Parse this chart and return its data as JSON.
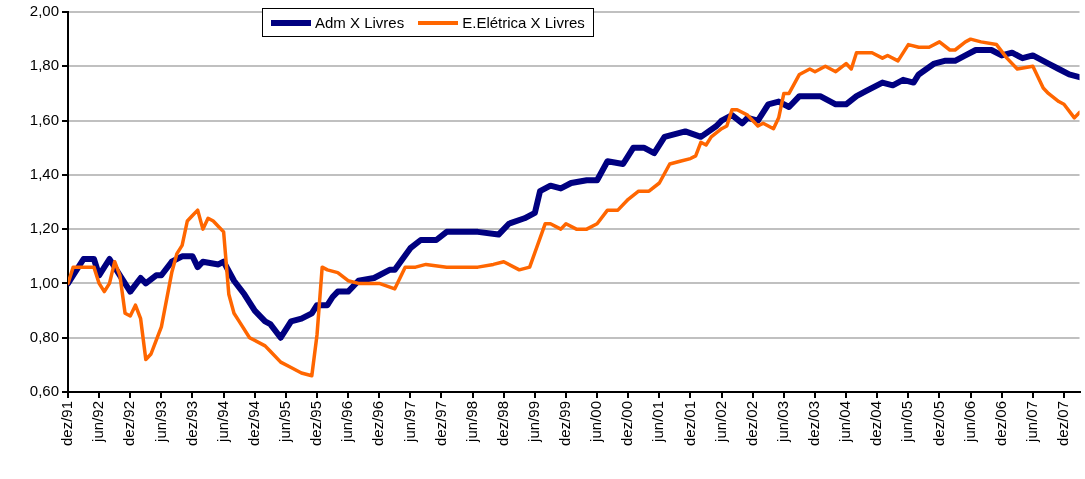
{
  "chart_data": {
    "type": "line",
    "legend": "top",
    "grid": "y",
    "marker": "none",
    "line_style": "solid",
    "xlim": [
      "1991-12",
      "2008-03"
    ],
    "xticks": [
      {
        "value": "1991-12",
        "label": "dez/91"
      },
      {
        "value": "1992-06",
        "label": "jun/92"
      },
      {
        "value": "1992-12",
        "label": "dez/92"
      },
      {
        "value": "1993-06",
        "label": "jun/93"
      },
      {
        "value": "1993-12",
        "label": "dez/93"
      },
      {
        "value": "1994-06",
        "label": "jun/94"
      },
      {
        "value": "1994-12",
        "label": "dez/94"
      },
      {
        "value": "1995-06",
        "label": "jun/95"
      },
      {
        "value": "1995-12",
        "label": "dez/95"
      },
      {
        "value": "1996-06",
        "label": "jun/96"
      },
      {
        "value": "1996-12",
        "label": "dez/96"
      },
      {
        "value": "1997-06",
        "label": "jun/97"
      },
      {
        "value": "1997-12",
        "label": "dez/97"
      },
      {
        "value": "1998-06",
        "label": "jun/98"
      },
      {
        "value": "1998-12",
        "label": "dez/98"
      },
      {
        "value": "1999-06",
        "label": "jun/99"
      },
      {
        "value": "1999-12",
        "label": "dez/99"
      },
      {
        "value": "2000-06",
        "label": "jun/00"
      },
      {
        "value": "2000-12",
        "label": "dez/00"
      },
      {
        "value": "2001-06",
        "label": "jun/01"
      },
      {
        "value": "2001-12",
        "label": "dez/01"
      },
      {
        "value": "2002-06",
        "label": "jun/02"
      },
      {
        "value": "2002-12",
        "label": "dez/02"
      },
      {
        "value": "2003-06",
        "label": "jun/03"
      },
      {
        "value": "2003-12",
        "label": "dez/03"
      },
      {
        "value": "2004-06",
        "label": "jun/04"
      },
      {
        "value": "2004-12",
        "label": "dez/04"
      },
      {
        "value": "2005-06",
        "label": "jun/05"
      },
      {
        "value": "2005-12",
        "label": "dez/05"
      },
      {
        "value": "2006-06",
        "label": "jun/06"
      },
      {
        "value": "2006-12",
        "label": "dez/06"
      },
      {
        "value": "2007-06",
        "label": "jun/07"
      },
      {
        "value": "2007-12",
        "label": "dez/07"
      }
    ],
    "ylim": [
      0.6,
      2.0
    ],
    "yticks": [
      {
        "value": 0.6,
        "label": "0,60"
      },
      {
        "value": 0.8,
        "label": "0,80"
      },
      {
        "value": 1.0,
        "label": "1,00"
      },
      {
        "value": 1.2,
        "label": "1,20"
      },
      {
        "value": 1.4,
        "label": "1,40"
      },
      {
        "value": 1.6,
        "label": "1,60"
      },
      {
        "value": 1.8,
        "label": "1,80"
      },
      {
        "value": 2.0,
        "label": "2,00"
      }
    ],
    "series": [
      {
        "name": "Adm X Livres",
        "color": "#000080",
        "x": [
          "1991-12",
          "1992-03",
          "1992-05",
          "1992-06",
          "1992-08",
          "1992-10",
          "1992-12",
          "1993-02",
          "1993-03",
          "1993-05",
          "1993-06",
          "1993-08",
          "1993-10",
          "1993-12",
          "1994-01",
          "1994-02",
          "1994-05",
          "1994-06",
          "1994-08",
          "1994-10",
          "1994-12",
          "1995-02",
          "1995-03",
          "1995-05",
          "1995-07",
          "1995-09",
          "1995-11",
          "1995-12",
          "1996-02",
          "1996-03",
          "1996-04",
          "1996-06",
          "1996-08",
          "1996-11",
          "1997-02",
          "1997-03",
          "1997-06",
          "1997-08",
          "1997-11",
          "1998-01",
          "1998-03",
          "1998-07",
          "1998-11",
          "1999-01",
          "1999-04",
          "1999-06",
          "1999-07",
          "1999-09",
          "1999-11",
          "2000-01",
          "2000-04",
          "2000-06",
          "2000-08",
          "2000-11",
          "2001-01",
          "2001-03",
          "2001-05",
          "2001-07",
          "2001-11",
          "2002-02",
          "2002-05",
          "2002-06",
          "2002-08",
          "2002-10",
          "2002-11",
          "2003-01",
          "2003-03",
          "2003-05",
          "2003-07",
          "2003-09",
          "2004-01",
          "2004-04",
          "2004-06",
          "2004-08",
          "2004-10",
          "2005-01",
          "2005-03",
          "2005-05",
          "2005-07",
          "2005-08",
          "2005-11",
          "2006-01",
          "2006-03",
          "2006-05",
          "2006-07",
          "2006-10",
          "2006-12",
          "2007-02",
          "2007-04",
          "2007-06",
          "2007-09",
          "2007-11",
          "2008-01",
          "2008-03"
        ],
        "values": [
          1.0,
          1.09,
          1.09,
          1.03,
          1.09,
          1.03,
          0.97,
          1.02,
          1.0,
          1.03,
          1.03,
          1.08,
          1.1,
          1.1,
          1.06,
          1.08,
          1.07,
          1.08,
          1.01,
          0.96,
          0.9,
          0.86,
          0.85,
          0.8,
          0.86,
          0.87,
          0.89,
          0.92,
          0.92,
          0.95,
          0.97,
          0.97,
          1.01,
          1.02,
          1.05,
          1.05,
          1.13,
          1.16,
          1.16,
          1.19,
          1.19,
          1.19,
          1.18,
          1.22,
          1.24,
          1.26,
          1.34,
          1.36,
          1.35,
          1.37,
          1.38,
          1.38,
          1.45,
          1.44,
          1.5,
          1.5,
          1.48,
          1.54,
          1.56,
          1.54,
          1.58,
          1.6,
          1.62,
          1.59,
          1.61,
          1.6,
          1.66,
          1.67,
          1.65,
          1.69,
          1.69,
          1.66,
          1.66,
          1.69,
          1.71,
          1.74,
          1.73,
          1.75,
          1.74,
          1.77,
          1.81,
          1.82,
          1.82,
          1.84,
          1.86,
          1.86,
          1.84,
          1.85,
          1.83,
          1.84,
          1.81,
          1.79,
          1.77,
          1.76
        ]
      },
      {
        "name": "E.Elétrica X Livres",
        "color": "#ff6600",
        "x": [
          "1991-12",
          "1992-01",
          "1992-04",
          "1992-05",
          "1992-06",
          "1992-07",
          "1992-08",
          "1992-09",
          "1992-10",
          "1992-11",
          "1992-12",
          "1993-01",
          "1993-02",
          "1993-03",
          "1993-04",
          "1993-05",
          "1993-06",
          "1993-08",
          "1993-09",
          "1993-10",
          "1993-11",
          "1993-12",
          "1994-01",
          "1994-02",
          "1994-03",
          "1994-04",
          "1994-05",
          "1994-06",
          "1994-07",
          "1994-08",
          "1994-09",
          "1994-11",
          "1995-02",
          "1995-03",
          "1995-05",
          "1995-07",
          "1995-09",
          "1995-11",
          "1995-12",
          "1996-01",
          "1996-02",
          "1996-04",
          "1996-06",
          "1996-08",
          "1996-10",
          "1996-12",
          "1997-03",
          "1997-05",
          "1997-07",
          "1997-09",
          "1998-01",
          "1998-04",
          "1998-07",
          "1998-10",
          "1998-12",
          "1999-03",
          "1999-05",
          "1999-08",
          "1999-09",
          "1999-11",
          "1999-12",
          "2000-02",
          "2000-04",
          "2000-06",
          "2000-08",
          "2000-10",
          "2000-12",
          "2001-02",
          "2001-04",
          "2001-06",
          "2001-08",
          "2001-10",
          "2001-12",
          "2002-01",
          "2002-02",
          "2002-03",
          "2002-04",
          "2002-06",
          "2002-07",
          "2002-08",
          "2002-09",
          "2002-11",
          "2003-01",
          "2003-02",
          "2003-04",
          "2003-05",
          "2003-06",
          "2003-07",
          "2003-09",
          "2003-11",
          "2003-12",
          "2004-02",
          "2004-04",
          "2004-06",
          "2004-07",
          "2004-08",
          "2004-11",
          "2005-01",
          "2005-02",
          "2005-04",
          "2005-06",
          "2005-08",
          "2005-10",
          "2005-12",
          "2006-02",
          "2006-03",
          "2006-05",
          "2006-06",
          "2006-08",
          "2006-11",
          "2007-01",
          "2007-03",
          "2007-06",
          "2007-08",
          "2007-09",
          "2007-11",
          "2007-12",
          "2008-02",
          "2008-03"
        ],
        "values": [
          1.0,
          1.06,
          1.06,
          1.06,
          1.0,
          0.97,
          1.0,
          1.08,
          1.03,
          0.89,
          0.88,
          0.92,
          0.87,
          0.72,
          0.74,
          0.79,
          0.84,
          1.04,
          1.11,
          1.14,
          1.23,
          1.25,
          1.27,
          1.2,
          1.24,
          1.23,
          1.21,
          1.19,
          0.96,
          0.89,
          0.86,
          0.8,
          0.77,
          0.75,
          0.71,
          0.69,
          0.67,
          0.66,
          0.81,
          1.06,
          1.05,
          1.04,
          1.01,
          1.0,
          1.0,
          1.0,
          0.98,
          1.06,
          1.06,
          1.07,
          1.06,
          1.06,
          1.06,
          1.07,
          1.08,
          1.05,
          1.06,
          1.22,
          1.22,
          1.2,
          1.22,
          1.2,
          1.2,
          1.22,
          1.27,
          1.27,
          1.31,
          1.34,
          1.34,
          1.37,
          1.44,
          1.45,
          1.46,
          1.47,
          1.52,
          1.51,
          1.54,
          1.57,
          1.58,
          1.64,
          1.64,
          1.62,
          1.58,
          1.59,
          1.57,
          1.61,
          1.7,
          1.7,
          1.77,
          1.79,
          1.78,
          1.8,
          1.78,
          1.81,
          1.79,
          1.85,
          1.85,
          1.83,
          1.84,
          1.82,
          1.88,
          1.87,
          1.87,
          1.89,
          1.86,
          1.86,
          1.89,
          1.9,
          1.89,
          1.88,
          1.83,
          1.79,
          1.8,
          1.72,
          1.7,
          1.67,
          1.66,
          1.61,
          1.63
        ]
      }
    ]
  }
}
